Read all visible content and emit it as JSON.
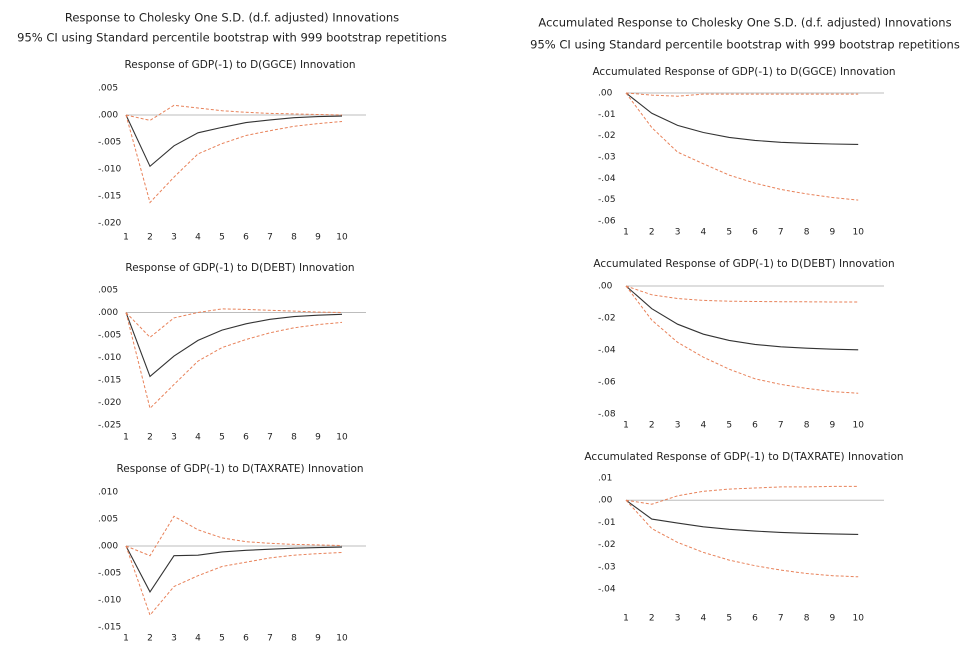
{
  "groups": [
    {
      "title": "Response to Cholesky One S.D. (d.f. adjusted) Innovations",
      "subtitle": "95% CI using Standard percentile bootstrap with 999 bootstrap repetitions"
    },
    {
      "title": "Accumulated Response to Cholesky One S.D. (d.f. adjusted) Innovations",
      "subtitle": "95% CI using Standard percentile bootstrap with 999 bootstrap repetitions"
    }
  ],
  "chart_data": [
    {
      "type": "line",
      "title": "Response of GDP(-1) to D(GGCE) Innovation",
      "x": [
        1,
        2,
        3,
        4,
        5,
        6,
        7,
        8,
        9,
        10
      ],
      "xlim": [
        1,
        11
      ],
      "xticks": [
        1,
        2,
        3,
        4,
        5,
        6,
        7,
        8,
        9,
        10
      ],
      "ylim": [
        -0.02,
        0.005
      ],
      "yticks": [
        {
          "value": 0.005,
          "label": ".005"
        },
        {
          "value": 0,
          "label": ".000"
        },
        {
          "value": -0.005,
          "label": "-.005"
        },
        {
          "value": -0.01,
          "label": "-.010"
        },
        {
          "value": -0.015,
          "label": "-.015"
        },
        {
          "value": -0.02,
          "label": "-.020"
        }
      ],
      "zero_line": true,
      "series": [
        {
          "color": "#333333",
          "dashed": false,
          "values": [
            0,
            -0.0095,
            -0.0057,
            -0.0033,
            -0.0023,
            -0.0014,
            -0.0009,
            -0.0005,
            -0.0003,
            -0.0002
          ]
        },
        {
          "color": "#e8825a",
          "dashed": true,
          "values": [
            0,
            -0.001,
            0.0018,
            0.0013,
            0.0008,
            0.0005,
            0.0003,
            0.0002,
            0.0001,
            0
          ]
        },
        {
          "color": "#e8825a",
          "dashed": true,
          "values": [
            0,
            -0.0162,
            -0.0115,
            -0.0072,
            -0.0053,
            -0.0038,
            -0.0029,
            -0.0021,
            -0.0016,
            -0.0012
          ]
        }
      ]
    },
    {
      "type": "line",
      "title": "Response of GDP(-1) to D(DEBT) Innovation",
      "x": [
        1,
        2,
        3,
        4,
        5,
        6,
        7,
        8,
        9,
        10
      ],
      "xlim": [
        1,
        11
      ],
      "xticks": [
        1,
        2,
        3,
        4,
        5,
        6,
        7,
        8,
        9,
        10
      ],
      "ylim": [
        -0.025,
        0.005
      ],
      "yticks": [
        {
          "value": 0.005,
          "label": ".005"
        },
        {
          "value": 0,
          "label": ".000"
        },
        {
          "value": -0.005,
          "label": "-.005"
        },
        {
          "value": -0.01,
          "label": "-.010"
        },
        {
          "value": -0.015,
          "label": "-.015"
        },
        {
          "value": -0.02,
          "label": "-.020"
        },
        {
          "value": -0.025,
          "label": "-.025"
        }
      ],
      "zero_line": true,
      "series": [
        {
          "color": "#333333",
          "dashed": false,
          "values": [
            0,
            -0.0142,
            -0.0097,
            -0.0062,
            -0.0039,
            -0.0025,
            -0.0015,
            -0.0009,
            -0.0006,
            -0.0004
          ]
        },
        {
          "color": "#e8825a",
          "dashed": true,
          "values": [
            0,
            -0.0055,
            -0.0012,
            0,
            0.0008,
            0.0007,
            0.0005,
            0.0003,
            0.0001,
            0
          ]
        },
        {
          "color": "#e8825a",
          "dashed": true,
          "values": [
            0,
            -0.0213,
            -0.016,
            -0.0108,
            -0.0078,
            -0.006,
            -0.0045,
            -0.0034,
            -0.0027,
            -0.0022
          ]
        }
      ]
    },
    {
      "type": "line",
      "title": "Response of GDP(-1) to D(TAXRATE) Innovation",
      "x": [
        1,
        2,
        3,
        4,
        5,
        6,
        7,
        8,
        9,
        10
      ],
      "xlim": [
        1,
        11
      ],
      "xticks": [
        1,
        2,
        3,
        4,
        5,
        6,
        7,
        8,
        9,
        10
      ],
      "ylim": [
        -0.015,
        0.01
      ],
      "yticks": [
        {
          "value": 0.01,
          "label": ".010"
        },
        {
          "value": 0.005,
          "label": ".005"
        },
        {
          "value": 0,
          "label": ".000"
        },
        {
          "value": -0.005,
          "label": "-.005"
        },
        {
          "value": -0.01,
          "label": "-.010"
        },
        {
          "value": -0.015,
          "label": "-.015"
        }
      ],
      "zero_line": true,
      "series": [
        {
          "color": "#333333",
          "dashed": false,
          "values": [
            0,
            -0.0085,
            -0.0018,
            -0.0017,
            -0.0011,
            -0.0008,
            -0.0006,
            -0.0004,
            -0.0003,
            -0.0002
          ]
        },
        {
          "color": "#e8825a",
          "dashed": true,
          "values": [
            0,
            -0.0018,
            0.0055,
            0.003,
            0.0015,
            0.0008,
            0.0005,
            0.0003,
            0.0002,
            0.0001
          ]
        },
        {
          "color": "#e8825a",
          "dashed": true,
          "values": [
            0,
            -0.0128,
            -0.0075,
            -0.0055,
            -0.0038,
            -0.003,
            -0.0022,
            -0.0017,
            -0.0014,
            -0.0012
          ]
        }
      ]
    },
    {
      "type": "line",
      "title": "Accumulated Response of GDP(-1) to D(GGCE) Innovation",
      "x": [
        1,
        2,
        3,
        4,
        5,
        6,
        7,
        8,
        9,
        10
      ],
      "xlim": [
        1,
        11
      ],
      "xticks": [
        1,
        2,
        3,
        4,
        5,
        6,
        7,
        8,
        9,
        10
      ],
      "ylim": [
        -0.06,
        0
      ],
      "yticks": [
        {
          "value": 0,
          "label": ".00"
        },
        {
          "value": -0.01,
          "label": "-.01"
        },
        {
          "value": -0.02,
          "label": "-.02"
        },
        {
          "value": -0.03,
          "label": "-.03"
        },
        {
          "value": -0.04,
          "label": "-.04"
        },
        {
          "value": -0.05,
          "label": "-.05"
        },
        {
          "value": -0.06,
          "label": "-.06"
        }
      ],
      "zero_line": true,
      "series": [
        {
          "color": "#333333",
          "dashed": false,
          "values": [
            0,
            -0.0095,
            -0.0152,
            -0.0185,
            -0.0208,
            -0.0222,
            -0.0231,
            -0.0236,
            -0.0239,
            -0.0241
          ]
        },
        {
          "color": "#e8825a",
          "dashed": true,
          "values": [
            0,
            -0.001,
            -0.0015,
            -0.0005,
            -0.0005,
            -0.0005,
            -0.0005,
            -0.0005,
            -0.0005,
            -0.0005
          ]
        },
        {
          "color": "#e8825a",
          "dashed": true,
          "values": [
            0,
            -0.0162,
            -0.0277,
            -0.0332,
            -0.0385,
            -0.0423,
            -0.0452,
            -0.0473,
            -0.049,
            -0.0502
          ]
        }
      ]
    },
    {
      "type": "line",
      "title": "Accumulated Response of GDP(-1) to D(DEBT) Innovation",
      "x": [
        1,
        2,
        3,
        4,
        5,
        6,
        7,
        8,
        9,
        10
      ],
      "xlim": [
        1,
        11
      ],
      "xticks": [
        1,
        2,
        3,
        4,
        5,
        6,
        7,
        8,
        9,
        10
      ],
      "ylim": [
        -0.08,
        0
      ],
      "yticks": [
        {
          "value": 0,
          "label": ".00"
        },
        {
          "value": -0.02,
          "label": "-.02"
        },
        {
          "value": -0.04,
          "label": "-.04"
        },
        {
          "value": -0.06,
          "label": "-.06"
        },
        {
          "value": -0.08,
          "label": "-.08"
        }
      ],
      "zero_line": true,
      "series": [
        {
          "color": "#333333",
          "dashed": false,
          "values": [
            0,
            -0.0142,
            -0.0239,
            -0.0301,
            -0.034,
            -0.0365,
            -0.038,
            -0.0389,
            -0.0395,
            -0.0399
          ]
        },
        {
          "color": "#e8825a",
          "dashed": true,
          "values": [
            0,
            -0.0055,
            -0.0078,
            -0.009,
            -0.0095,
            -0.0097,
            -0.0098,
            -0.0099,
            -0.01,
            -0.01
          ]
        },
        {
          "color": "#e8825a",
          "dashed": true,
          "values": [
            0,
            -0.0213,
            -0.0352,
            -0.0445,
            -0.052,
            -0.058,
            -0.0615,
            -0.064,
            -0.066,
            -0.067
          ]
        }
      ]
    },
    {
      "type": "line",
      "title": "Accumulated Response of GDP(-1) to D(TAXRATE) Innovation",
      "x": [
        1,
        2,
        3,
        4,
        5,
        6,
        7,
        8,
        9,
        10
      ],
      "xlim": [
        1,
        11
      ],
      "xticks": [
        1,
        2,
        3,
        4,
        5,
        6,
        7,
        8,
        9,
        10
      ],
      "ylim": [
        -0.04,
        0.01
      ],
      "yticks": [
        {
          "value": 0.01,
          "label": ".01"
        },
        {
          "value": 0,
          "label": ".00"
        },
        {
          "value": -0.01,
          "label": "-.01"
        },
        {
          "value": -0.02,
          "label": "-.02"
        },
        {
          "value": -0.03,
          "label": "-.03"
        },
        {
          "value": -0.04,
          "label": "-.04"
        }
      ],
      "zero_line": true,
      "series": [
        {
          "color": "#333333",
          "dashed": false,
          "values": [
            0,
            -0.0085,
            -0.0103,
            -0.012,
            -0.0131,
            -0.0139,
            -0.0145,
            -0.0149,
            -0.0152,
            -0.0154
          ]
        },
        {
          "color": "#e8825a",
          "dashed": true,
          "values": [
            0,
            -0.0018,
            0.002,
            0.004,
            0.005,
            0.0055,
            0.006,
            0.006,
            0.0062,
            0.0062
          ]
        },
        {
          "color": "#e8825a",
          "dashed": true,
          "values": [
            0,
            -0.0128,
            -0.019,
            -0.0235,
            -0.027,
            -0.0295,
            -0.0315,
            -0.033,
            -0.034,
            -0.0345
          ]
        }
      ]
    }
  ]
}
